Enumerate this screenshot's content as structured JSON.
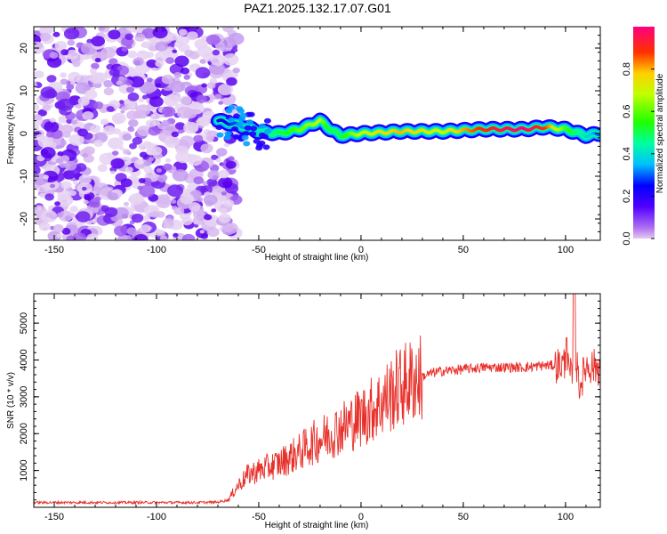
{
  "title": "PAZ1.2025.132.17.07.G01",
  "chart_data": [
    {
      "type": "heatmap",
      "xlabel": "Height of straight line (km)",
      "ylabel": "Frequency (Hz)",
      "xlim": [
        -160,
        117
      ],
      "ylim": [
        -25,
        25
      ],
      "xticks": [
        -150,
        -100,
        -50,
        0,
        50,
        100
      ],
      "yticks": [
        -20,
        -10,
        0,
        10,
        20
      ],
      "colorbar": {
        "label": "Normalized spectral amplitude",
        "range": [
          0,
          1
        ],
        "ticks": [
          0.0,
          0.2,
          0.4,
          0.6,
          0.8
        ]
      },
      "noise_region_x": [
        -160,
        -65
      ],
      "signal_trace": {
        "x": [
          -70,
          -60,
          -50,
          -40,
          -30,
          -20,
          -15,
          -10,
          0,
          20,
          40,
          60,
          80,
          90,
          100,
          110,
          117
        ],
        "freq": [
          3,
          2,
          0.5,
          0,
          1,
          3,
          1,
          -0.5,
          0,
          0.5,
          0.5,
          1,
          1,
          1.5,
          1,
          -0.5,
          0
        ],
        "amplitude": [
          0.2,
          0.3,
          0.4,
          0.5,
          0.6,
          0.7,
          0.5,
          0.5,
          0.7,
          0.8,
          0.7,
          0.9,
          1.0,
          0.9,
          0.6,
          0.4,
          0.3
        ]
      }
    },
    {
      "type": "line",
      "xlabel": "Height of straight line (km)",
      "ylabel": "SNR (10 * v/v)",
      "xlim": [
        -160,
        117
      ],
      "ylim": [
        0,
        5800
      ],
      "xticks": [
        -150,
        -100,
        -50,
        0,
        50,
        100
      ],
      "yticks": [
        1000,
        2000,
        3000,
        4000,
        5000
      ],
      "color": "#e8302a",
      "series": [
        {
          "x": [
            -160,
            -140,
            -120,
            -100,
            -80,
            -70,
            -65,
            -60,
            -55,
            -50,
            -45,
            -40,
            -35,
            -30,
            -25,
            -20,
            -15,
            -10,
            -5,
            0,
            5,
            10,
            15,
            20,
            25,
            30,
            35,
            40,
            50,
            60,
            70,
            80,
            90,
            95,
            100,
            103,
            105,
            107,
            110,
            117
          ],
          "y": [
            130,
            130,
            130,
            130,
            130,
            140,
            200,
            600,
            900,
            1000,
            1100,
            1200,
            1350,
            1500,
            1700,
            1850,
            2000,
            2150,
            2300,
            2450,
            2650,
            2850,
            3100,
            3300,
            3450,
            3550,
            3650,
            3700,
            3750,
            3800,
            3800,
            3800,
            3850,
            3850,
            3900,
            3500,
            4000,
            3300,
            3850,
            3800
          ]
        }
      ]
    }
  ]
}
